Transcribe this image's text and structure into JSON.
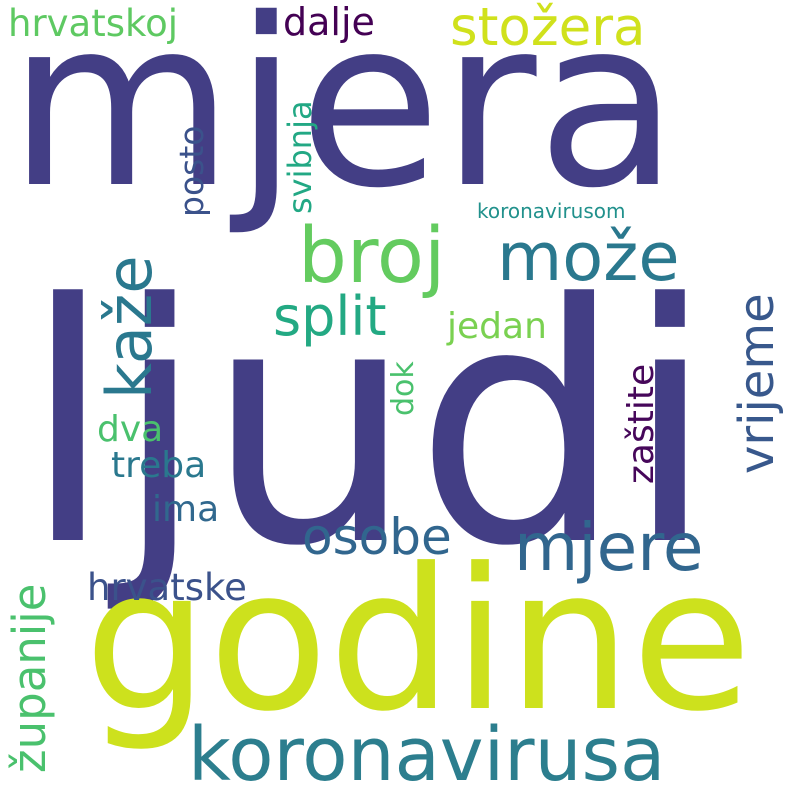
{
  "word_cloud": {
    "background": "#ffffff",
    "words": [
      {
        "text": "ljudi",
        "color": "#433e85"
      },
      {
        "text": "mjera",
        "color": "#433e85"
      },
      {
        "text": "godine",
        "color": "#cde11d"
      },
      {
        "text": "koronavirusa",
        "color": "#2c7e8e"
      },
      {
        "text": "broj",
        "color": "#63cb5f"
      },
      {
        "text": "može",
        "color": "#2a788e"
      },
      {
        "text": "kaže",
        "color": "#2a788e"
      },
      {
        "text": "mjere",
        "color": "#31668e"
      },
      {
        "text": "split",
        "color": "#23a983"
      },
      {
        "text": "stožera",
        "color": "#d0e11c"
      },
      {
        "text": "vrijeme",
        "color": "#38588c"
      },
      {
        "text": "osobe",
        "color": "#31668e"
      },
      {
        "text": "hrvatskoj",
        "color": "#5ec962"
      },
      {
        "text": "dalje",
        "color": "#440154"
      },
      {
        "text": "posto",
        "color": "#3b528b"
      },
      {
        "text": "svibnja",
        "color": "#22a884"
      },
      {
        "text": "jedan",
        "color": "#7ad151"
      },
      {
        "text": "zaštite",
        "color": "#46075a"
      },
      {
        "text": "dok",
        "color": "#4ac16d"
      },
      {
        "text": "dva",
        "color": "#4ac16d"
      },
      {
        "text": "treba",
        "color": "#2a788e"
      },
      {
        "text": "ima",
        "color": "#31688e"
      },
      {
        "text": "hrvatske",
        "color": "#3b528b"
      },
      {
        "text": "županije",
        "color": "#4ac16d"
      },
      {
        "text": "koronavirusom",
        "color": "#21918c"
      }
    ]
  }
}
